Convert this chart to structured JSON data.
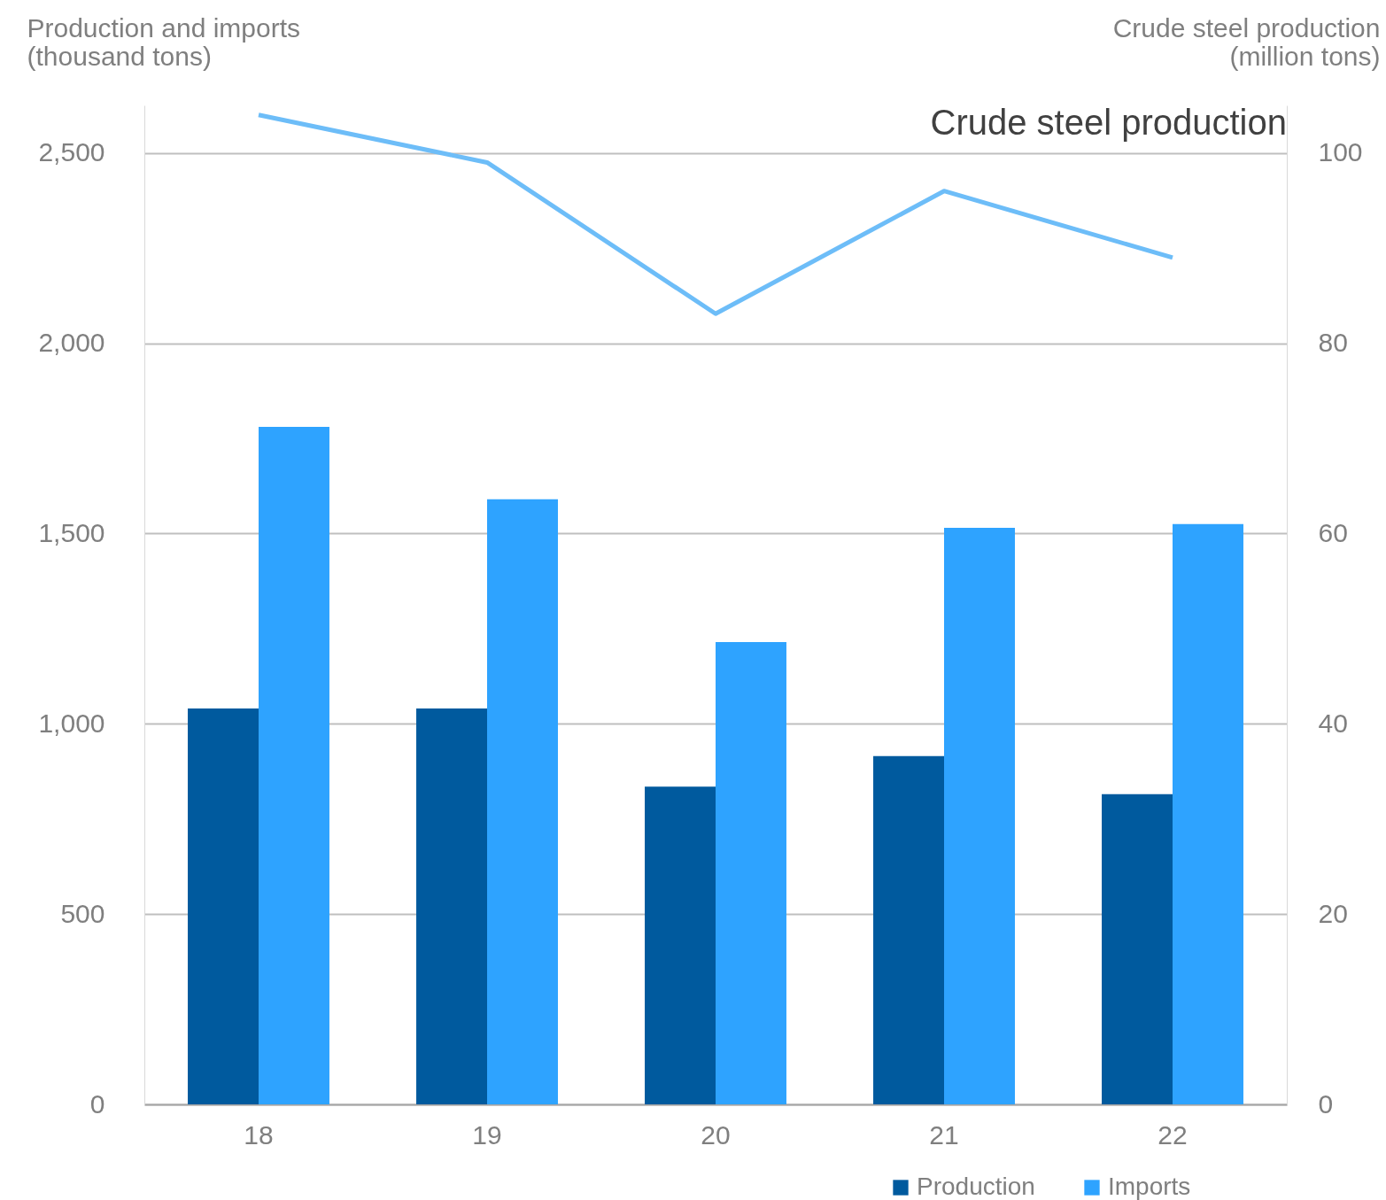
{
  "chart_data": {
    "type": "bar",
    "categories": [
      "18",
      "19",
      "20",
      "21",
      "22"
    ],
    "ylabel": "Production and imports\n(thousand tons)",
    "y2label": "Crude steel production\n(million tons)",
    "series": [
      {
        "name": "Production",
        "color": "#005a9e",
        "values": [
          1040,
          1040,
          835,
          915,
          815
        ]
      },
      {
        "name": "Imports",
        "color": "#2ea3ff",
        "values": [
          1780,
          1590,
          1215,
          1515,
          1525
        ]
      },
      {
        "name": "Crude steel production",
        "type": "line",
        "axis": "y2",
        "color": "#6dbdf8",
        "values": [
          104.0,
          99.0,
          83.1,
          96.0,
          89.0
        ]
      }
    ],
    "ylim": [
      0,
      2625
    ],
    "yticks": [
      {
        "value": 0,
        "label": "0"
      },
      {
        "value": 500,
        "label": "500"
      },
      {
        "value": 1000,
        "label": "1,000"
      },
      {
        "value": 1500,
        "label": "1,500"
      },
      {
        "value": 2000,
        "label": "2,000"
      },
      {
        "value": 2500,
        "label": "2,500"
      }
    ],
    "y2lim": [
      0,
      105
    ],
    "y2ticks": [
      0,
      20,
      40,
      60,
      80,
      100
    ],
    "grid": "y",
    "legend": "bottom right"
  }
}
